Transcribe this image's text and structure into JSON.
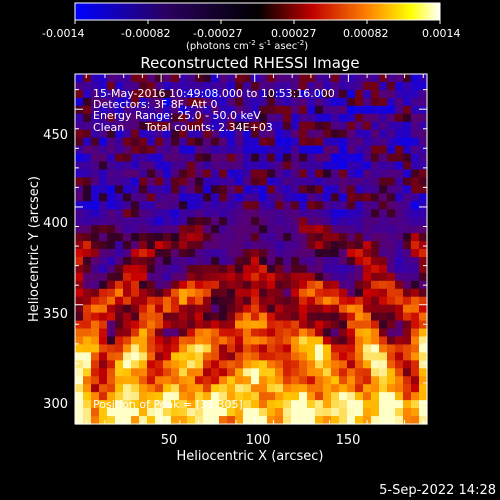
{
  "chart_data": {
    "type": "heatmap",
    "title": "Reconstructed RHESSI Image",
    "xlabel": "Heliocentric X (arcsec)",
    "ylabel": "Heliocentric Y (arcsec)",
    "xlim": [
      4,
      192
    ],
    "ylim": [
      289,
      468
    ],
    "xticks": [
      50,
      100,
      150
    ],
    "yticks": [
      300,
      350,
      400,
      450
    ],
    "colorbar": {
      "range": [
        -0.0014,
        0.0014
      ],
      "ticks": [
        "-0.0014",
        "-0.00082",
        "-0.00027",
        "0.00027",
        "0.00082",
        "0.0014"
      ],
      "unit_prefix": "(photons cm",
      "unit_exp1": "-2",
      "unit_mid": " s",
      "unit_exp2": "-1",
      "unit_mid2": " asec",
      "unit_exp3": "-2",
      "unit_suffix": ")",
      "colors": [
        "#0000ff",
        "#000000",
        "#ff0000",
        "#ffff00",
        "#ffffff"
      ]
    },
    "annotations": [
      "15-May-2016 10:49:08.000 to 10:53:16.000",
      "Detectors: 3F 8F, Att 0",
      "Energy Range: 25.0 - 50.0 keV",
      "Clean",
      "Total counts: 2.34E+03"
    ],
    "peak_label": "Position of Peak = [31,305]",
    "grid": false
  },
  "footer": {
    "date": "5-Sep-2022 14:28"
  }
}
